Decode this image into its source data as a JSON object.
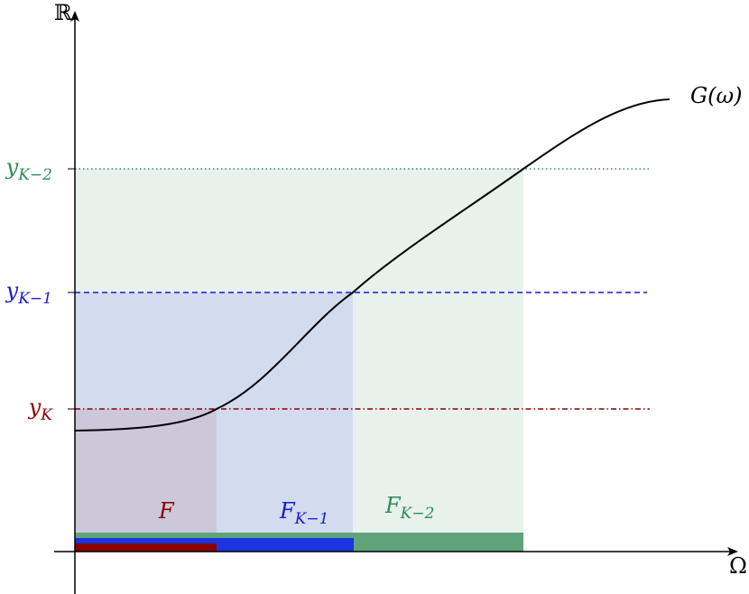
{
  "axes": {
    "y_label": "ℝ",
    "x_label": "Ω"
  },
  "curve": {
    "label": "G(ω)"
  },
  "levels": [
    {
      "base": "y",
      "sub": "K−2"
    },
    {
      "base": "y",
      "sub": "K−1"
    },
    {
      "base": "y",
      "sub": "K"
    }
  ],
  "sets": [
    {
      "base": "F"
    },
    {
      "base": "F",
      "sub": "K−1"
    },
    {
      "base": "F",
      "sub": "K−2"
    }
  ]
}
